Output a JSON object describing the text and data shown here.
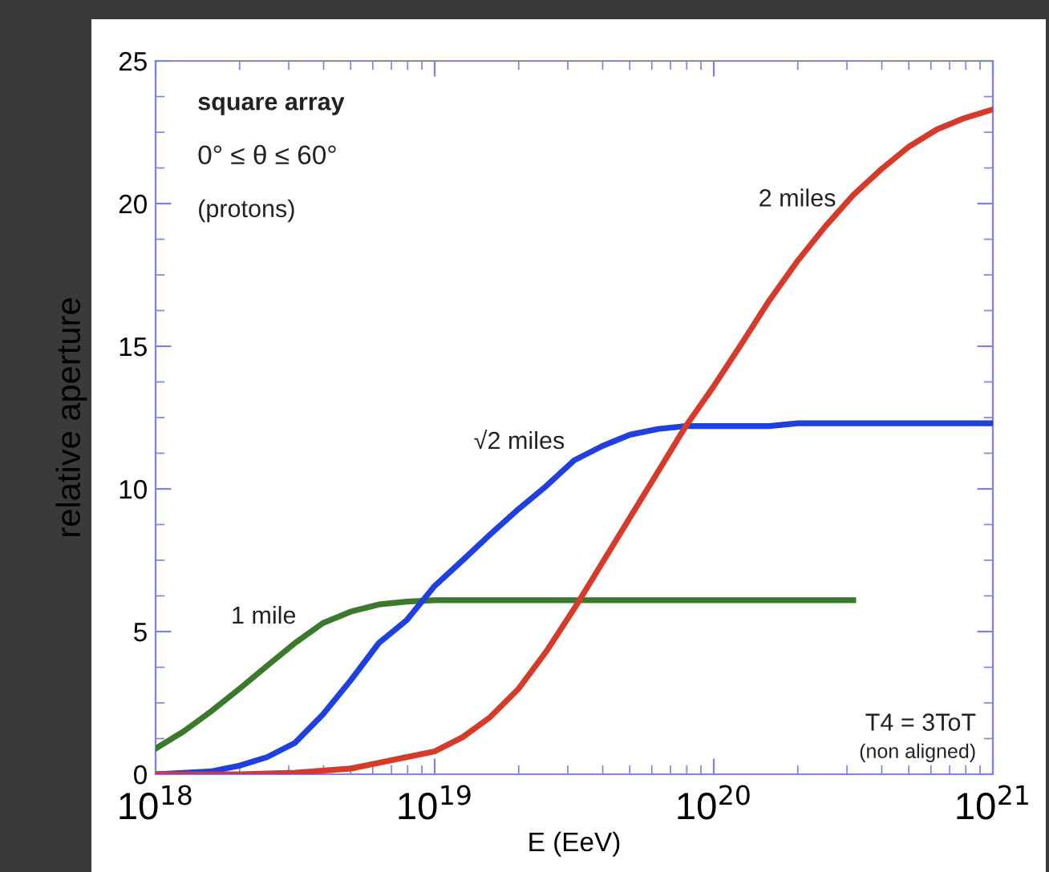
{
  "chart_data": {
    "type": "line",
    "xlabel": "E (EeV)",
    "ylabel": "relative aperture",
    "log": "x",
    "xlim": [
      1e+18,
      1e+21
    ],
    "xticks": [
      {
        "value": 1e+18,
        "label": "10$^{18}$"
      },
      {
        "value": 1e+19,
        "label": "10$^{19}$"
      },
      {
        "value": 1e+20,
        "label": "10$^{20}$"
      },
      {
        "value": 1e+21,
        "label": "10$^{21}$"
      }
    ],
    "ylim": [
      0,
      25
    ],
    "yticks": [
      0,
      5,
      10,
      15,
      20,
      25
    ],
    "grid": false,
    "legend": false,
    "marker": "none",
    "line_style": "solid",
    "annotations": [
      "square array",
      "0° ≤ θ ≤ 60°",
      "(protons)",
      "T4 = 3ToT",
      "(non aligned)"
    ],
    "series": [
      {
        "name": "1 mile",
        "color": "#3b7a2c",
        "x": [
          1e+18,
          1.26e+18,
          1.58e+18,
          2e+18,
          2.51e+18,
          3.16e+18,
          3.98e+18,
          5.01e+18,
          6.31e+18,
          7.94e+18,
          1e+19,
          3.16e+19,
          1e+20,
          3.16e+20
        ],
        "values": [
          0.9,
          1.5,
          2.2,
          3.0,
          3.8,
          4.6,
          5.3,
          5.7,
          5.95,
          6.05,
          6.1,
          6.1,
          6.1,
          6.1
        ]
      },
      {
        "name": "√2 miles",
        "color": "#1f3fe0",
        "x": [
          1e+18,
          1.58e+18,
          2e+18,
          2.51e+18,
          3.16e+18,
          3.98e+18,
          5.01e+18,
          6.31e+18,
          7.94e+18,
          1e+19,
          1.26e+19,
          1.58e+19,
          2e+19,
          2.51e+19,
          3.16e+19,
          3.98e+19,
          5.01e+19,
          6.31e+19,
          7.94e+19,
          1e+20,
          1.58e+20,
          2e+20,
          1e+21
        ],
        "values": [
          0,
          0.1,
          0.3,
          0.6,
          1.1,
          2.1,
          3.3,
          4.6,
          5.4,
          6.6,
          7.5,
          8.4,
          9.3,
          10.1,
          11.0,
          11.5,
          11.9,
          12.1,
          12.2,
          12.2,
          12.2,
          12.3,
          12.3
        ]
      },
      {
        "name": "2 miles",
        "color": "#d63a2a",
        "x": [
          1e+18,
          2e+18,
          3.16e+18,
          5.01e+18,
          6.31e+18,
          7.94e+18,
          1e+19,
          1.26e+19,
          1.58e+19,
          2e+19,
          2.51e+19,
          3.16e+19,
          3.98e+19,
          5.01e+19,
          6.31e+19,
          7.94e+19,
          1e+20,
          1.26e+20,
          1.58e+20,
          2e+20,
          2.51e+20,
          3.16e+20,
          3.98e+20,
          5.01e+20,
          6.31e+20,
          7.94e+20,
          1e+21
        ],
        "values": [
          0,
          0,
          0.05,
          0.2,
          0.4,
          0.6,
          0.8,
          1.3,
          2.0,
          3.0,
          4.3,
          5.8,
          7.4,
          9.0,
          10.6,
          12.2,
          13.6,
          15.1,
          16.6,
          18.0,
          19.2,
          20.3,
          21.2,
          22.0,
          22.6,
          23.0,
          23.3
        ]
      }
    ]
  }
}
